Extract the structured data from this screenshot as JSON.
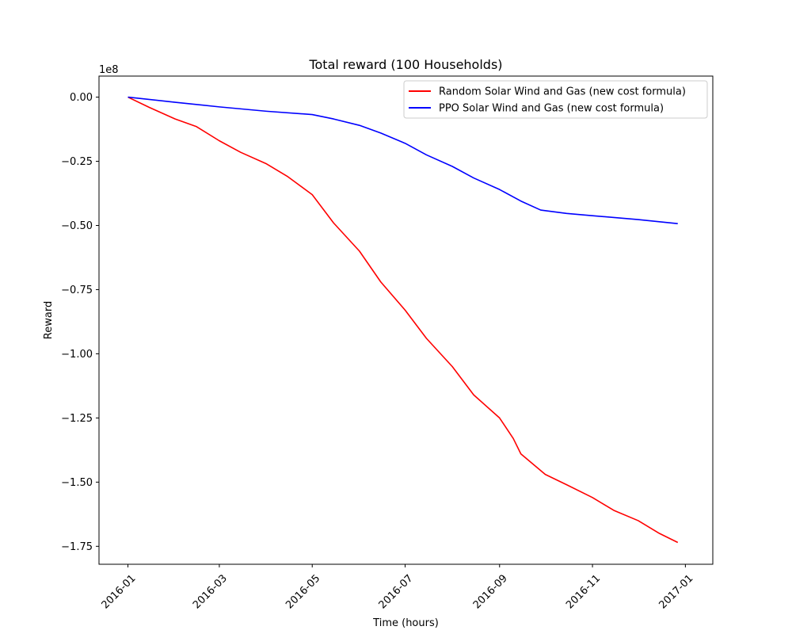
{
  "chart_data": {
    "type": "line",
    "title": "Total reward (100 Households)",
    "xlabel": "Time (hours)",
    "ylabel": "Reward",
    "y_offset_label": "1e8",
    "x_type": "date",
    "xlim": [
      "2015-12-13",
      "2017-01-19"
    ],
    "ylim": [
      -1.82,
      0.082
    ],
    "y_scale_factor": 100000000,
    "grid": false,
    "legend_position": "upper right",
    "x_ticks": [
      {
        "date": "2016-01-01",
        "label": "2016-01"
      },
      {
        "date": "2016-03-01",
        "label": "2016-03"
      },
      {
        "date": "2016-05-01",
        "label": "2016-05"
      },
      {
        "date": "2016-07-01",
        "label": "2016-07"
      },
      {
        "date": "2016-09-01",
        "label": "2016-09"
      },
      {
        "date": "2016-11-01",
        "label": "2016-11"
      },
      {
        "date": "2017-01-01",
        "label": "2017-01"
      }
    ],
    "y_ticks": [
      {
        "value": 0.0,
        "label": "0.00"
      },
      {
        "value": -0.25,
        "label": "−0.25"
      },
      {
        "value": -0.5,
        "label": "−0.50"
      },
      {
        "value": -0.75,
        "label": "−0.75"
      },
      {
        "value": -1.0,
        "label": "−1.00"
      },
      {
        "value": -1.25,
        "label": "−1.25"
      },
      {
        "value": -1.5,
        "label": "−1.50"
      },
      {
        "value": -1.75,
        "label": "−1.75"
      }
    ],
    "series": [
      {
        "name": "Random Solar Wind and Gas (new cost formula)",
        "color": "#ff0000",
        "points": [
          [
            "2016-01-01",
            0.0
          ],
          [
            "2016-01-15",
            -0.04
          ],
          [
            "2016-02-01",
            -0.085
          ],
          [
            "2016-02-15",
            -0.115
          ],
          [
            "2016-03-01",
            -0.17
          ],
          [
            "2016-03-15",
            -0.215
          ],
          [
            "2016-04-01",
            -0.26
          ],
          [
            "2016-04-15",
            -0.31
          ],
          [
            "2016-05-01",
            -0.38
          ],
          [
            "2016-05-15",
            -0.49
          ],
          [
            "2016-06-01",
            -0.6
          ],
          [
            "2016-06-15",
            -0.72
          ],
          [
            "2016-07-01",
            -0.83
          ],
          [
            "2016-07-15",
            -0.94
          ],
          [
            "2016-08-01",
            -1.05
          ],
          [
            "2016-08-15",
            -1.16
          ],
          [
            "2016-09-01",
            -1.25
          ],
          [
            "2016-09-10",
            -1.33
          ],
          [
            "2016-09-15",
            -1.39
          ],
          [
            "2016-10-01",
            -1.47
          ],
          [
            "2016-10-15",
            -1.51
          ],
          [
            "2016-11-01",
            -1.56
          ],
          [
            "2016-11-15",
            -1.61
          ],
          [
            "2016-12-01",
            -1.65
          ],
          [
            "2016-12-15",
            -1.7
          ],
          [
            "2016-12-27",
            -1.735
          ]
        ]
      },
      {
        "name": "PPO Solar Wind and Gas (new cost formula)",
        "color": "#0000ff",
        "points": [
          [
            "2016-01-01",
            0.0
          ],
          [
            "2016-02-01",
            -0.02
          ],
          [
            "2016-03-01",
            -0.038
          ],
          [
            "2016-04-01",
            -0.055
          ],
          [
            "2016-05-01",
            -0.068
          ],
          [
            "2016-05-15",
            -0.085
          ],
          [
            "2016-06-01",
            -0.11
          ],
          [
            "2016-06-15",
            -0.14
          ],
          [
            "2016-07-01",
            -0.18
          ],
          [
            "2016-07-15",
            -0.225
          ],
          [
            "2016-08-01",
            -0.27
          ],
          [
            "2016-08-15",
            -0.315
          ],
          [
            "2016-09-01",
            -0.36
          ],
          [
            "2016-09-15",
            -0.405
          ],
          [
            "2016-09-28",
            -0.44
          ],
          [
            "2016-10-15",
            -0.453
          ],
          [
            "2016-11-01",
            -0.462
          ],
          [
            "2016-12-01",
            -0.477
          ],
          [
            "2016-12-27",
            -0.493
          ]
        ]
      }
    ]
  }
}
